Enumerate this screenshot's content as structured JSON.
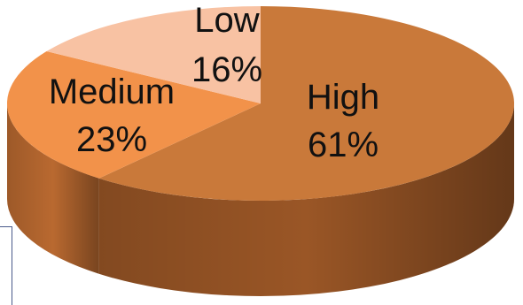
{
  "chart_data": {
    "type": "pie",
    "title": "",
    "three_d": true,
    "legend": "none",
    "slices": [
      {
        "label": "High",
        "value": 61,
        "value_label": "61%",
        "color": "#c9793a",
        "side_color": "#9a5626"
      },
      {
        "label": "Medium",
        "value": 23,
        "value_label": "23%",
        "color": "#f2924a",
        "side_color": "#b96930"
      },
      {
        "label": "Low",
        "value": 16,
        "value_label": "16%",
        "color": "#f8c2a3",
        "side_color": "#c48f72"
      }
    ]
  }
}
